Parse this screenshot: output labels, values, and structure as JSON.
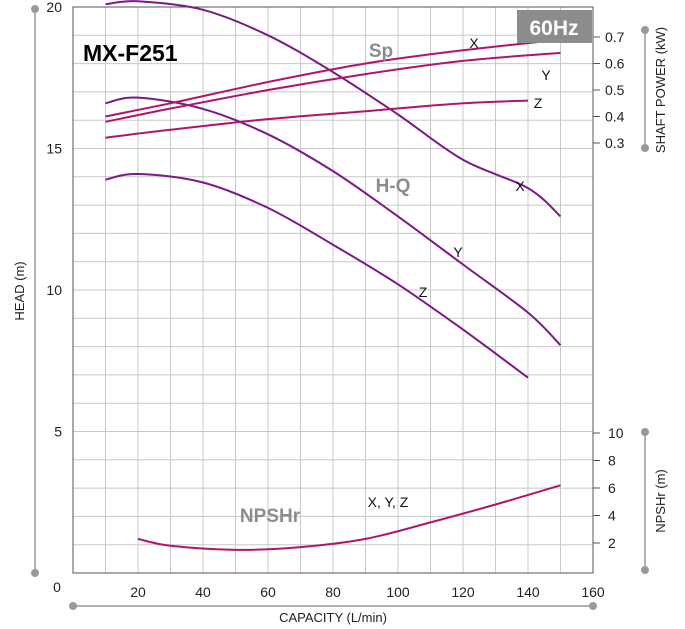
{
  "chart_data": {
    "type": "line",
    "title": "MX-F251",
    "badge": "60Hz",
    "xlabel": "CAPACITY (L/min)",
    "xlim": [
      0,
      160
    ],
    "x_ticks": [
      "20",
      "40",
      "60",
      "80",
      "100",
      "120",
      "140",
      "160"
    ],
    "origin_label": "0",
    "head_axis": {
      "label": "HEAD (m)",
      "ylim": [
        0,
        20
      ],
      "ticks": [
        "5",
        "10",
        "15",
        "20"
      ],
      "tick_values": [
        5,
        10,
        15,
        20
      ]
    },
    "power_axis": {
      "label": "SHAFT POWER (kW)",
      "ticks": [
        "0.3",
        "0.4",
        "0.5",
        "0.6",
        "0.7"
      ],
      "tick_values": [
        0.3,
        0.4,
        0.5,
        0.6,
        0.7
      ]
    },
    "npsh_axis": {
      "label": "NPSHr (m)",
      "ticks": [
        "2",
        "4",
        "6",
        "8",
        "10"
      ],
      "tick_values": [
        2,
        4,
        6,
        8,
        10
      ]
    },
    "group_labels": {
      "head": "H-Q",
      "power": "Sp",
      "npsh": "NPSHr",
      "npsh_series": "X, Y, Z"
    },
    "series": {
      "head": [
        {
          "name": "X",
          "x": [
            10,
            20,
            40,
            60,
            80,
            100,
            120,
            140,
            150
          ],
          "y": [
            20.1,
            20.2,
            19.9,
            19.0,
            17.7,
            16.2,
            14.6,
            13.6,
            12.6
          ]
        },
        {
          "name": "Y",
          "x": [
            10,
            20,
            40,
            60,
            80,
            100,
            120,
            140,
            150
          ],
          "y": [
            16.6,
            16.8,
            16.4,
            15.5,
            14.2,
            12.6,
            10.9,
            9.2,
            8.05
          ]
        },
        {
          "name": "Z",
          "x": [
            10,
            20,
            40,
            60,
            80,
            100,
            120,
            140
          ],
          "y": [
            13.9,
            14.1,
            13.8,
            12.9,
            11.6,
            10.2,
            8.6,
            6.9
          ]
        }
      ],
      "power": [
        {
          "name": "X",
          "x": [
            10,
            30,
            60,
            90,
            120,
            150
          ],
          "y": [
            0.4,
            0.45,
            0.53,
            0.6,
            0.65,
            0.69
          ]
        },
        {
          "name": "Y",
          "x": [
            10,
            30,
            60,
            90,
            120,
            150
          ],
          "y": [
            0.38,
            0.43,
            0.5,
            0.56,
            0.61,
            0.64
          ]
        },
        {
          "name": "Z",
          "x": [
            10,
            30,
            60,
            90,
            120,
            140
          ],
          "y": [
            0.32,
            0.35,
            0.39,
            0.42,
            0.45,
            0.46
          ]
        }
      ],
      "npsh": [
        {
          "name": "X, Y, Z",
          "x": [
            20,
            30,
            50,
            70,
            90,
            110,
            130,
            150
          ],
          "y": [
            2.3,
            1.8,
            1.5,
            1.7,
            2.3,
            3.5,
            4.8,
            6.2
          ]
        }
      ]
    },
    "colors": {
      "head": "#7b1a86",
      "power": "#b0156c",
      "npsh": "#b0156c",
      "badge": "#8c8c8c",
      "grid": "#c8c8c8"
    }
  }
}
